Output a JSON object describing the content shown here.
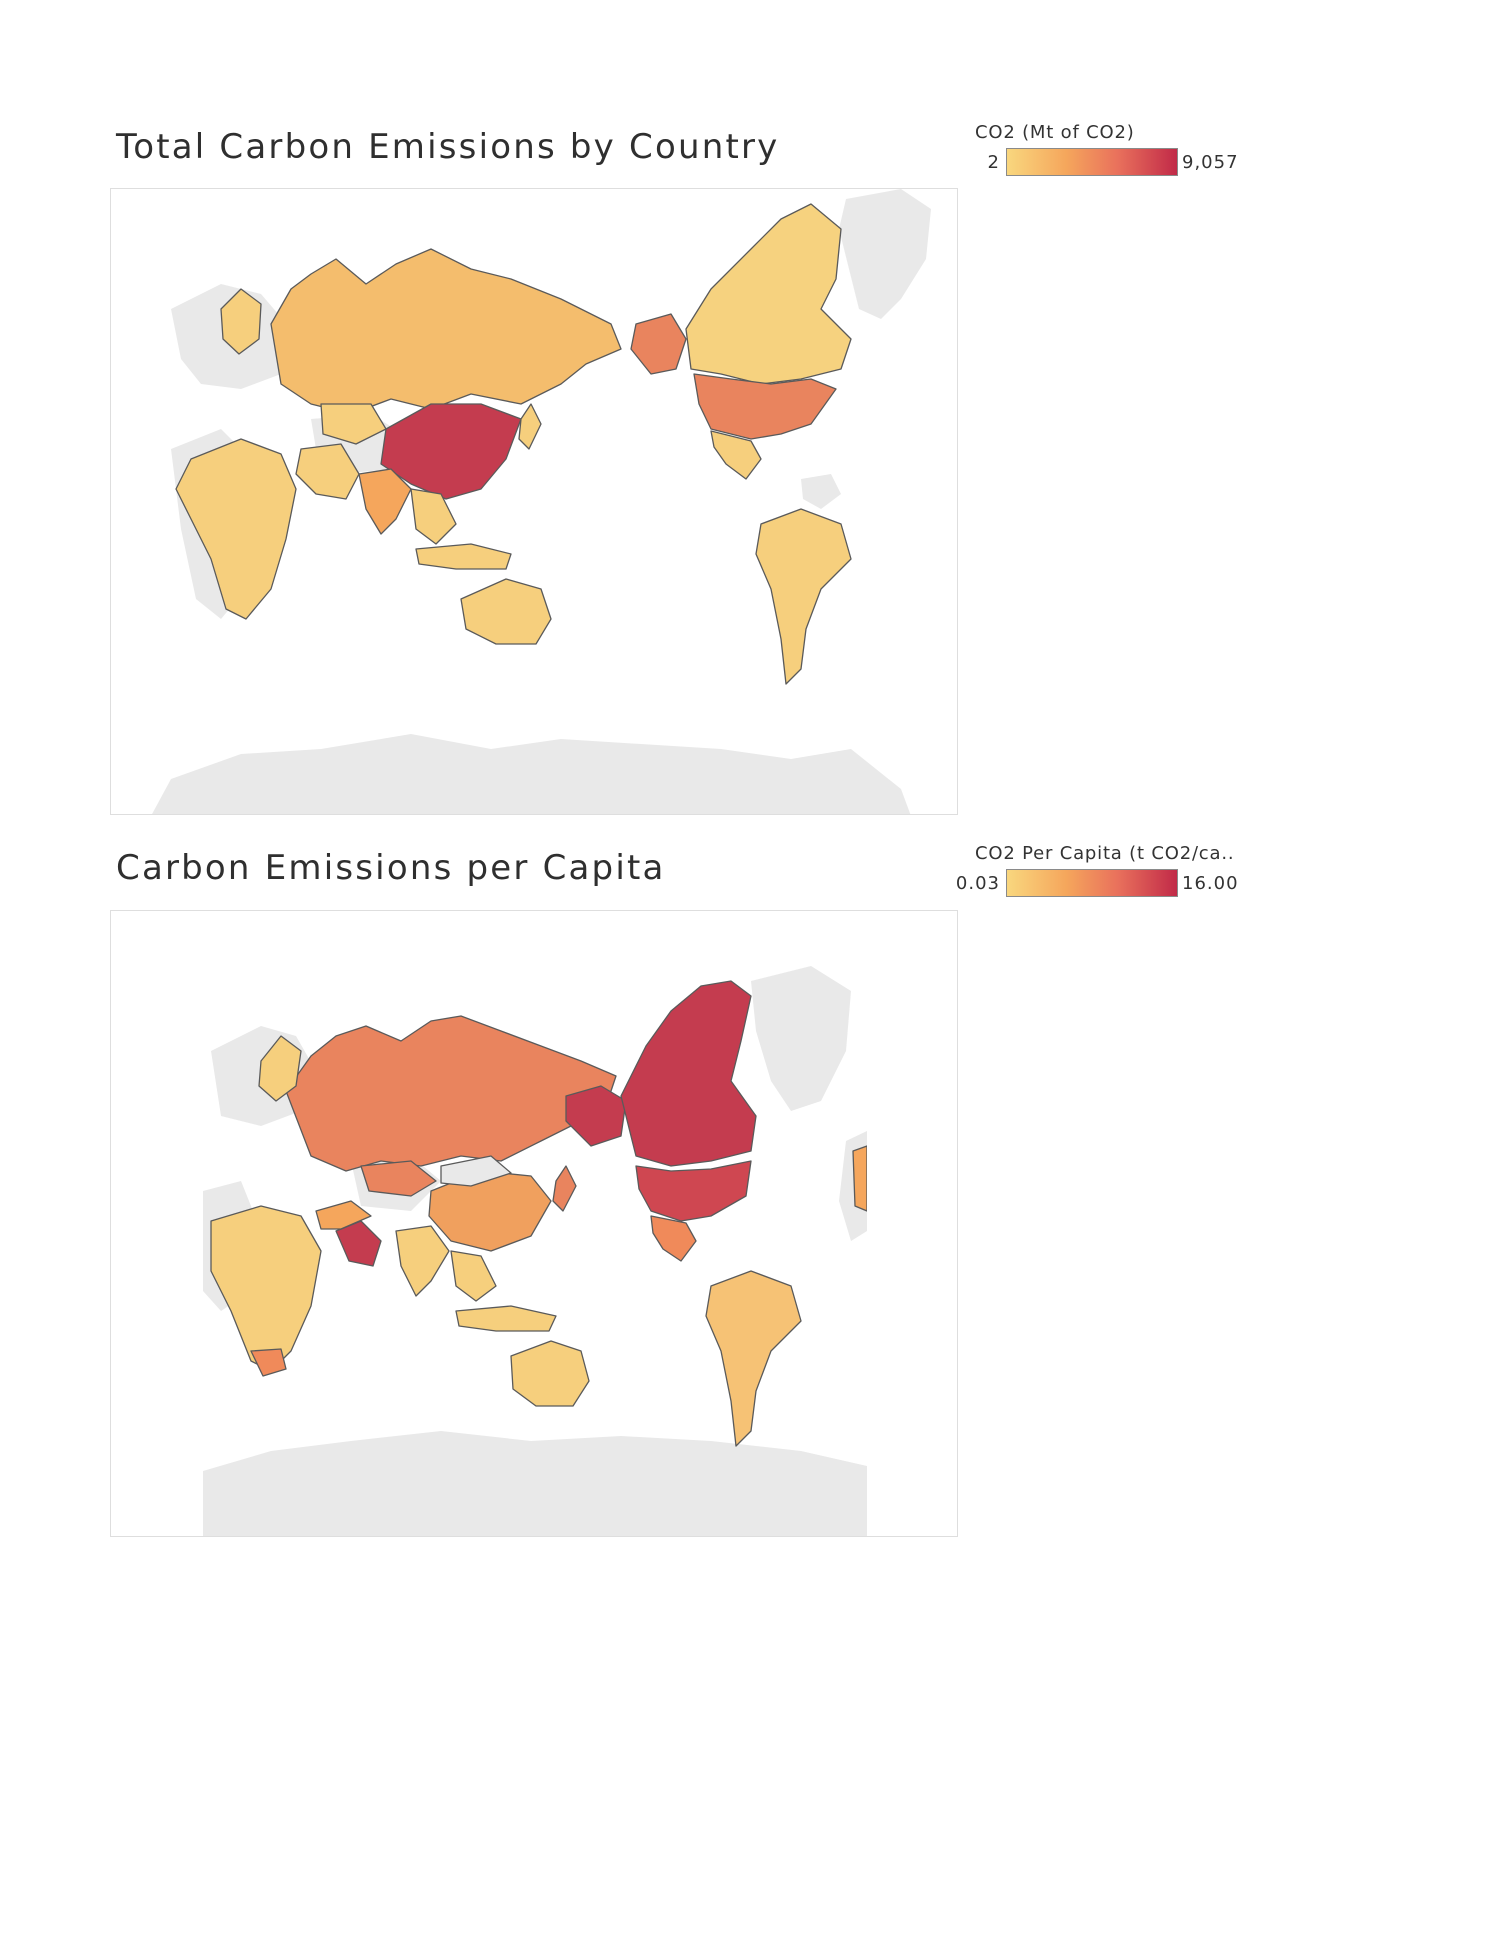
{
  "panels": [
    {
      "title": "Total Carbon Emissions by Country",
      "legend": {
        "title": "CO2 (Mt of CO2)",
        "min_label": "2",
        "max_label": "9,057"
      }
    },
    {
      "title": "Carbon Emissions per Capita",
      "legend": {
        "title": "CO2 Per Capita (t CO2/ca..",
        "min_label": "0.03",
        "max_label": "16.00"
      }
    }
  ],
  "colors": {
    "scale_low": "#f9d77e",
    "scale_mid_low": "#f5a65c",
    "scale_mid_high": "#e9715c",
    "scale_high": "#c12a48",
    "no_data_land": "#e9e9e9",
    "border": "#5a5a5a"
  }
}
